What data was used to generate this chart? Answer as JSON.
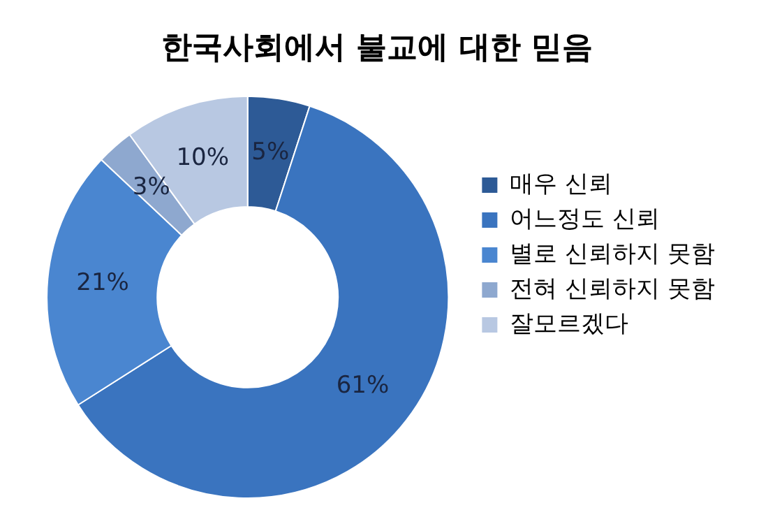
{
  "chart_data": {
    "type": "donut",
    "title": "한국사회에서 불교에 대한 믿음",
    "categories": [
      "매우 신뢰",
      "어느정도 신뢰",
      "별로 신뢰하지 못함",
      "전혀 신뢰하지 못함",
      "잘모르겠다"
    ],
    "values": [
      5,
      61,
      21,
      3,
      10
    ],
    "colors": [
      "#2d5a96",
      "#3a74bf",
      "#4a86d0",
      "#8ea8cf",
      "#b8c8e2"
    ],
    "value_labels": [
      "5%",
      "61%",
      "21%",
      "3%",
      "10%"
    ],
    "legend": "right"
  }
}
